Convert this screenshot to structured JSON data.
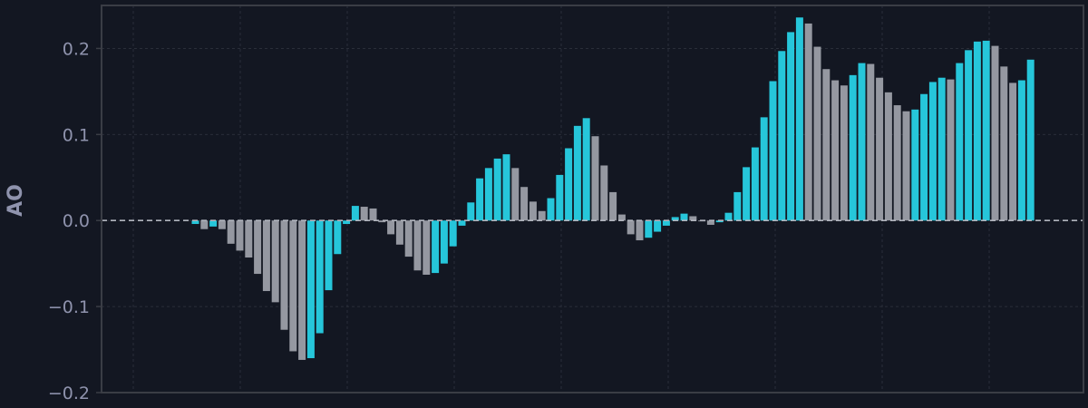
{
  "chart_data": {
    "type": "bar",
    "xlabel": "",
    "ylabel": "AO",
    "ylim": [
      -0.2,
      0.25
    ],
    "yticks": [
      -0.2,
      -0.1,
      0.0,
      0.1,
      0.2
    ],
    "ytick_labels": [
      "−0.2",
      "−0.1",
      "0.0",
      "0.1",
      "0.2"
    ],
    "x_tick_labels_visible": false,
    "grid": true,
    "zero_line": "dashed",
    "colors": {
      "background": "#131722",
      "rising": "#26c6da",
      "falling": "#9598a1",
      "grid": "#2a2e39",
      "axis": "#3a3d45",
      "zero_line": "#b2b5be",
      "text": "#8f93ad"
    },
    "values": [
      -0.004,
      -0.01,
      -0.007,
      -0.01,
      -0.027,
      -0.035,
      -0.043,
      -0.062,
      -0.082,
      -0.095,
      -0.127,
      -0.152,
      -0.162,
      -0.16,
      -0.131,
      -0.081,
      -0.039,
      -0.004,
      0.017,
      0.016,
      0.014,
      -0.002,
      -0.016,
      -0.028,
      -0.042,
      -0.058,
      -0.063,
      -0.061,
      -0.05,
      -0.03,
      -0.006,
      0.021,
      0.049,
      0.061,
      0.072,
      0.077,
      0.061,
      0.039,
      0.022,
      0.011,
      0.026,
      0.053,
      0.084,
      0.11,
      0.119,
      0.098,
      0.064,
      0.033,
      0.007,
      -0.016,
      -0.023,
      -0.02,
      -0.013,
      -0.006,
      0.004,
      0.008,
      0.005,
      -0.001,
      -0.005,
      -0.002,
      0.009,
      0.033,
      0.062,
      0.085,
      0.12,
      0.162,
      0.197,
      0.219,
      0.236,
      0.229,
      0.202,
      0.176,
      0.163,
      0.157,
      0.169,
      0.183,
      0.182,
      0.166,
      0.149,
      0.134,
      0.127,
      0.129,
      0.147,
      0.161,
      0.166,
      0.164,
      0.183,
      0.198,
      0.208,
      0.209,
      0.203,
      0.179,
      0.16,
      0.163,
      0.187
    ]
  }
}
